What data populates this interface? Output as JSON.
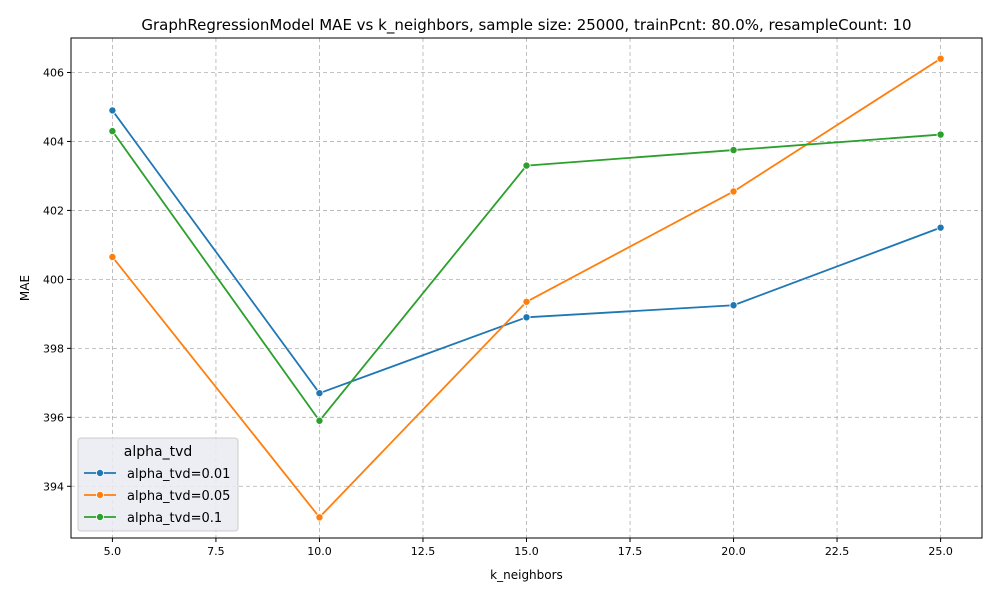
{
  "chart_data": {
    "type": "line",
    "title": "GraphRegressionModel MAE vs k_neighbors, sample size: 25000, trainPcnt: 80.0%, resampleCount: 10",
    "xlabel": "k_neighbors",
    "ylabel": "MAE",
    "xlim": [
      4.0,
      26.0
    ],
    "ylim": [
      392.5,
      407.0
    ],
    "xticks": [
      5.0,
      7.5,
      10.0,
      12.5,
      15.0,
      17.5,
      20.0,
      22.5,
      25.0
    ],
    "xtick_labels": [
      "5.0",
      "7.5",
      "10.0",
      "12.5",
      "15.0",
      "17.5",
      "20.0",
      "22.5",
      "25.0"
    ],
    "yticks": [
      394,
      396,
      398,
      400,
      402,
      404,
      406
    ],
    "ytick_labels": [
      "394",
      "396",
      "398",
      "400",
      "402",
      "404",
      "406"
    ],
    "grid": true,
    "legend": {
      "title": "alpha_tvd",
      "position": "lower-left"
    },
    "x": [
      5,
      10,
      15,
      20,
      25
    ],
    "series": [
      {
        "name": "alpha_tvd=0.01",
        "color": "#1f77b4",
        "values": [
          404.9,
          396.7,
          398.9,
          399.25,
          401.5
        ]
      },
      {
        "name": "alpha_tvd=0.05",
        "color": "#ff7f0e",
        "values": [
          400.65,
          393.1,
          399.35,
          402.55,
          406.4
        ]
      },
      {
        "name": "alpha_tvd=0.1",
        "color": "#2ca02c",
        "values": [
          404.3,
          395.9,
          403.3,
          403.75,
          404.2
        ]
      }
    ]
  }
}
